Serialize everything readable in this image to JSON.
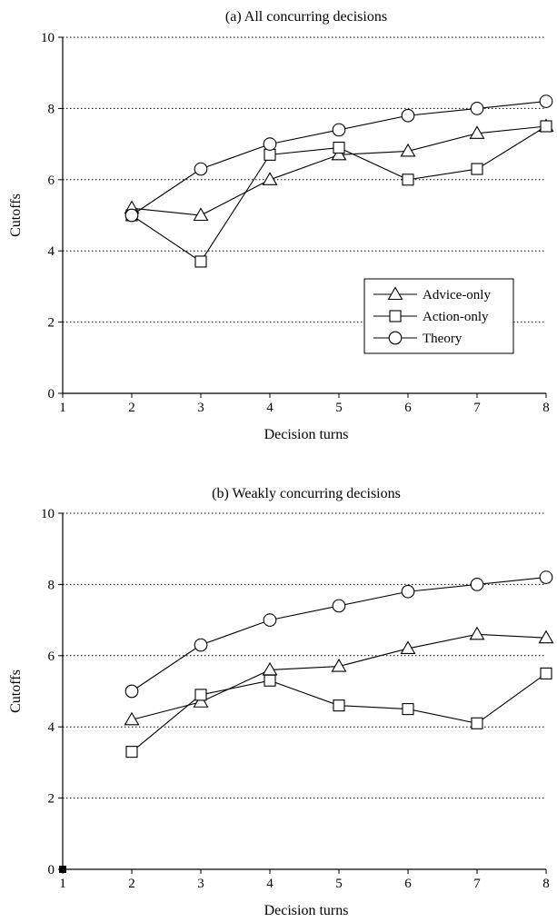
{
  "chart_data": [
    {
      "type": "line",
      "title": "(a) All concurring decisions",
      "xlabel": "Decision turns",
      "ylabel": "Cutoffs",
      "x_ticks": [
        1,
        2,
        3,
        4,
        5,
        6,
        7,
        8
      ],
      "y_ticks": [
        0,
        2,
        4,
        6,
        8,
        10
      ],
      "xlim": [
        1,
        8
      ],
      "ylim": [
        0,
        10
      ],
      "grid": "horizontal dotted",
      "legend_position": "lower-right",
      "series": [
        {
          "name": "Advice-only",
          "marker": "triangle",
          "x": [
            2,
            3,
            4,
            5,
            6,
            7,
            8
          ],
          "y": [
            5.2,
            5.0,
            6.0,
            6.7,
            6.8,
            7.3,
            7.5
          ]
        },
        {
          "name": "Action-only",
          "marker": "square",
          "x": [
            2,
            3,
            4,
            5,
            6,
            7,
            8
          ],
          "y": [
            5.0,
            3.7,
            6.7,
            6.9,
            6.0,
            6.3,
            7.5
          ]
        },
        {
          "name": "Theory",
          "marker": "circle",
          "x": [
            2,
            3,
            4,
            5,
            6,
            7,
            8
          ],
          "y": [
            5.0,
            6.3,
            7.0,
            7.4,
            7.8,
            8.0,
            8.2
          ]
        }
      ]
    },
    {
      "type": "line",
      "title": "(b) Weakly concurring decisions",
      "xlabel": "Decision turns",
      "ylabel": "Cutoffs",
      "x_ticks": [
        1,
        2,
        3,
        4,
        5,
        6,
        7,
        8
      ],
      "y_ticks": [
        0,
        2,
        4,
        6,
        8,
        10
      ],
      "xlim": [
        1,
        8
      ],
      "ylim": [
        0,
        10
      ],
      "grid": "horizontal dotted",
      "series": [
        {
          "name": "Advice-only",
          "marker": "triangle",
          "x": [
            2,
            3,
            4,
            5,
            6,
            7,
            8
          ],
          "y": [
            4.2,
            4.7,
            5.6,
            5.7,
            6.2,
            6.6,
            6.5
          ]
        },
        {
          "name": "Action-only",
          "marker": "square",
          "x": [
            2,
            3,
            4,
            5,
            6,
            7,
            8
          ],
          "y": [
            3.3,
            4.9,
            5.3,
            4.6,
            4.5,
            4.1,
            5.5
          ]
        },
        {
          "name": "Theory",
          "marker": "circle",
          "x": [
            2,
            3,
            4,
            5,
            6,
            7,
            8
          ],
          "y": [
            5.0,
            6.3,
            7.0,
            7.4,
            7.8,
            8.0,
            8.2
          ]
        }
      ]
    }
  ]
}
